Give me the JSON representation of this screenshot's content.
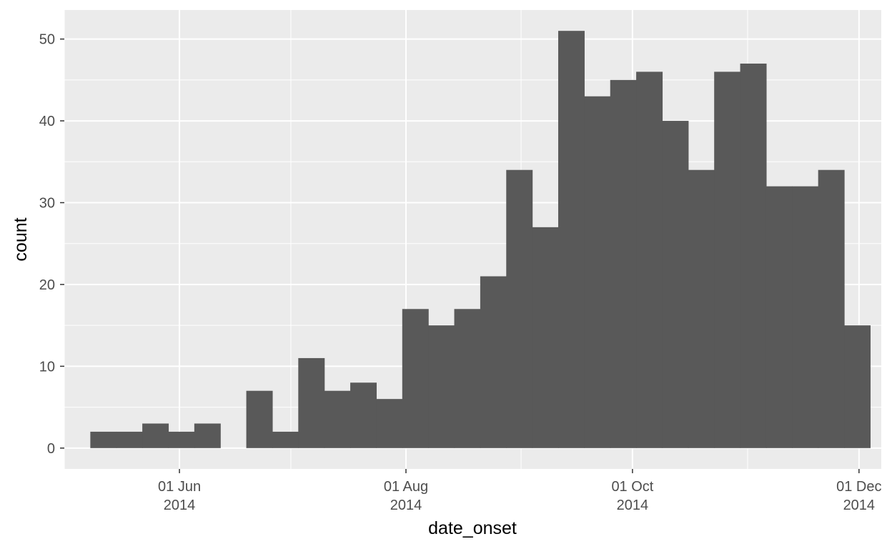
{
  "chart_data": {
    "type": "bar",
    "title": "",
    "xlabel": "date_onset",
    "ylabel": "count",
    "bin_width_days": 7,
    "bins": [
      {
        "start": "2014-05-08",
        "count": 2
      },
      {
        "start": "2014-05-15",
        "count": 2
      },
      {
        "start": "2014-05-22",
        "count": 3
      },
      {
        "start": "2014-05-29",
        "count": 2
      },
      {
        "start": "2014-06-05",
        "count": 3
      },
      {
        "start": "2014-06-12",
        "count": 0
      },
      {
        "start": "2014-06-19",
        "count": 7
      },
      {
        "start": "2014-06-26",
        "count": 2
      },
      {
        "start": "2014-07-03",
        "count": 11
      },
      {
        "start": "2014-07-10",
        "count": 7
      },
      {
        "start": "2014-07-17",
        "count": 8
      },
      {
        "start": "2014-07-24",
        "count": 6
      },
      {
        "start": "2014-07-31",
        "count": 17
      },
      {
        "start": "2014-08-07",
        "count": 15
      },
      {
        "start": "2014-08-14",
        "count": 17
      },
      {
        "start": "2014-08-21",
        "count": 21
      },
      {
        "start": "2014-08-28",
        "count": 34
      },
      {
        "start": "2014-09-04",
        "count": 27
      },
      {
        "start": "2014-09-11",
        "count": 51
      },
      {
        "start": "2014-09-18",
        "count": 43
      },
      {
        "start": "2014-09-25",
        "count": 45
      },
      {
        "start": "2014-10-02",
        "count": 46
      },
      {
        "start": "2014-10-09",
        "count": 40
      },
      {
        "start": "2014-10-16",
        "count": 34
      },
      {
        "start": "2014-10-23",
        "count": 46
      },
      {
        "start": "2014-10-30",
        "count": 47
      },
      {
        "start": "2014-11-06",
        "count": 32
      },
      {
        "start": "2014-11-13",
        "count": 32
      },
      {
        "start": "2014-11-20",
        "count": 34
      },
      {
        "start": "2014-11-27",
        "count": 15
      }
    ],
    "xlim": [
      "2014-05-01",
      "2014-12-07"
    ],
    "ylim": [
      -2.55,
      53.55
    ],
    "x_ticks": [
      {
        "date": "2014-06-01",
        "line1": "01 Jun",
        "line2": "2014"
      },
      {
        "date": "2014-08-01",
        "line1": "01 Aug",
        "line2": "2014"
      },
      {
        "date": "2014-10-01",
        "line1": "01 Oct",
        "line2": "2014"
      },
      {
        "date": "2014-12-01",
        "line1": "01 Dec",
        "line2": "2014"
      }
    ],
    "x_minor_gridlines": [
      "2014-05-01",
      "2014-07-01",
      "2014-09-01",
      "2014-11-01"
    ],
    "y_ticks": [
      0,
      10,
      20,
      30,
      40,
      50
    ],
    "y_tick_labels": [
      "0",
      "10",
      "20",
      "30",
      "40",
      "50"
    ],
    "grid": true,
    "colors": {
      "panel_background": "#ebebeb",
      "gridline": "#ffffff",
      "bar_fill": "#595959",
      "tick_text": "#4d4d4d",
      "tick_mark": "#333333",
      "axis_title": "#000000"
    }
  }
}
